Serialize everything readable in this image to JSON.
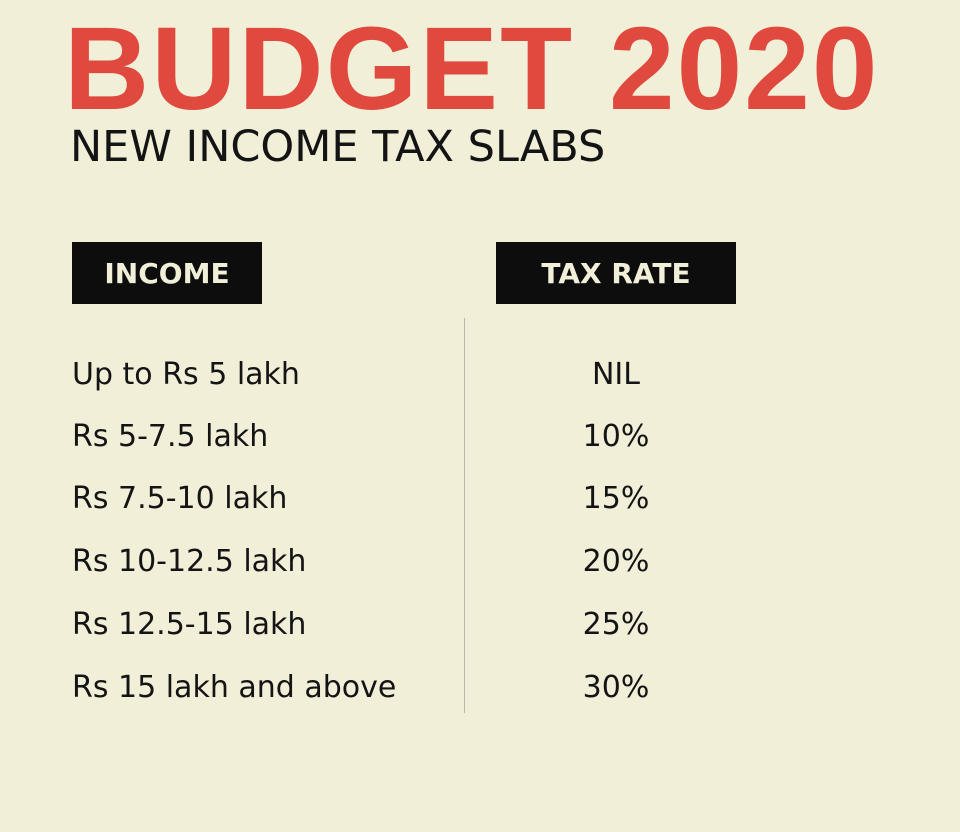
{
  "title": "BUDGET 2020",
  "subtitle": "NEW INCOME TAX SLABS",
  "headers": {
    "income": "INCOME",
    "tax_rate": "TAX RATE"
  },
  "rows": [
    {
      "income": "Up to Rs 5 lakh",
      "rate": "NIL"
    },
    {
      "income": "Rs 5-7.5 lakh",
      "rate": "10%"
    },
    {
      "income": "Rs 7.5-10 lakh",
      "rate": "15%"
    },
    {
      "income": "Rs 10-12.5 lakh",
      "rate": "20%"
    },
    {
      "income": "Rs 12.5-15 lakh",
      "rate": "25%"
    },
    {
      "income": "Rs 15 lakh and above",
      "rate": "30%"
    }
  ],
  "colors": {
    "background": "#f2efd9",
    "title": "#e04a3e",
    "header_background": "#0d0d0d",
    "text": "#141414"
  }
}
